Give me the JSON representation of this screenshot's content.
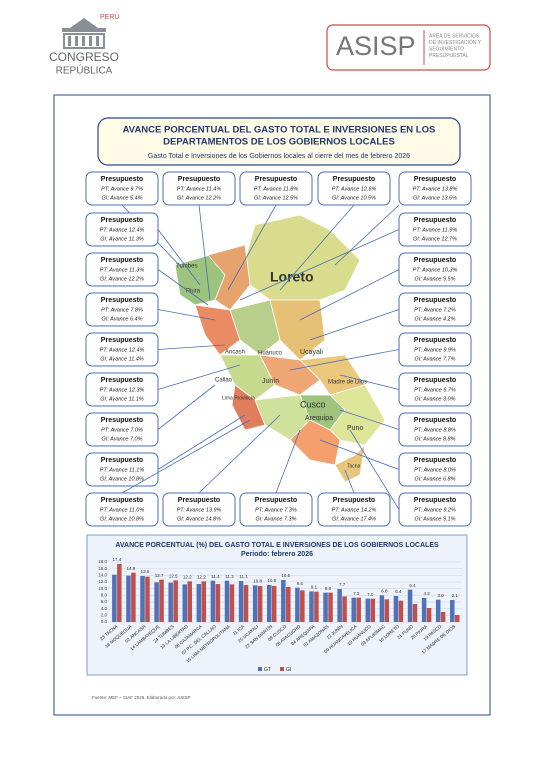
{
  "header": {
    "logo": {
      "top": "PERÚ",
      "name": "CONGRESO",
      "sub": "REPÚBLICA"
    },
    "brand": {
      "name": "ASISP",
      "lines": [
        "ÁREA DE SERVICIOS",
        "DE INVESTIGACIÓN Y",
        "SEGUIMIENTO",
        "PRESUPUESTAL"
      ]
    }
  },
  "infographic": {
    "title": [
      "AVANCE PORCENTUAL DEL GASTO TOTAL E INVERSIONES EN LOS",
      "DEPARTAMENTOS DE LOS GOBIERNOS LOCALES"
    ],
    "subtitle": "Gasto Total e Inversiones de los Gobiernos locales al cierre del mes de febrero 2026",
    "boxes": [
      {
        "title": "Presupuesto",
        "pt": "PT: Avance 9.7%",
        "gi": "GI: Avance 5.4%"
      },
      {
        "title": "Presupuesto",
        "pt": "PT: Avance 11.4%",
        "gi": "GI: Avance 12.2%"
      },
      {
        "title": "Presupuesto",
        "pt": "PT: Avance 11.8%",
        "gi": "GI: Avance 12.5%"
      },
      {
        "title": "Presupuesto",
        "pt": "PT: Avance 12.6%",
        "gi": "GI: Avance 10.5%"
      },
      {
        "title": "Presupuesto",
        "pt": "PT: Avance 13.8%",
        "gi": "GI: Avance 13.6%"
      },
      {
        "title": "Presupuesto",
        "pt": "PT: Avance 12.4%",
        "gi": "GI: Avance 11.3%"
      },
      {
        "title": "Presupuesto",
        "pt": "PT: Avance 11.3%",
        "gi": "GI: Avance 12.2%"
      },
      {
        "title": "Presupuesto",
        "pt": "PT: Avance 7.8%",
        "gi": "GI: Avance 6.4%"
      },
      {
        "title": "Presupuesto",
        "pt": "PT: Avance 12.4%",
        "gi": "GI: Avance 11.4%"
      },
      {
        "title": "Presupuesto",
        "pt": "PT: Avance 12.3%",
        "gi": "GI: Avance 11.1%"
      },
      {
        "title": "Presupuesto",
        "pt": "PT: Avance 7.0%",
        "gi": "GI: Avance 7.0%"
      },
      {
        "title": "Presupuesto",
        "pt": "PT: Avance 11.1%",
        "gi": "GI: Avance 10.8%"
      },
      {
        "title": "Presupuesto",
        "pt": "PT: Avance 11.9%",
        "gi": "GI: Avance 12.7%"
      },
      {
        "title": "Presupuesto",
        "pt": "PT: Avance 10.3%",
        "gi": "GI: Avance 9.5%"
      },
      {
        "title": "Presupuesto",
        "pt": "PT: Avance 7.2%",
        "gi": "GI: Avance 4.2%"
      },
      {
        "title": "Presupuesto",
        "pt": "PT: Avance 9.9%",
        "gi": "GI: Avance 7.7%"
      },
      {
        "title": "Presupuesto",
        "pt": "PT: Avance 6.7%",
        "gi": "GI: Avance 3.0%"
      },
      {
        "title": "Presupuesto",
        "pt": "PT: Avance 8.8%",
        "gi": "GI: Avance 8.8%"
      },
      {
        "title": "Presupuesto",
        "pt": "PT: Avance 8.0%",
        "gi": "GI: Avance 6.8%"
      },
      {
        "title": "Presupuesto",
        "pt": "PT: Avance 9.2%",
        "gi": "GI: Avance 9.1%"
      },
      {
        "title": "Presupuesto",
        "pt": "PT: Avance 11.0%",
        "gi": "GI: Avance 10.8%"
      },
      {
        "title": "Presupuesto",
        "pt": "PT: Avance 13.9%",
        "gi": "GI: Avance 14.8%"
      },
      {
        "title": "Presupuesto",
        "pt": "PT: Avance 7.3%",
        "gi": "GI: Avance 7.3%"
      },
      {
        "title": "Presupuesto",
        "pt": "PT: Avance 14.2%",
        "gi": "GI: Avance 17.4%"
      }
    ],
    "map_labels": [
      "Tumbes",
      "Piura",
      "Loreto",
      "Áncash",
      "Huánuco",
      "Ucayali",
      "Junín",
      "Callao",
      "Lima Provincia",
      "Madre de Dios",
      "Cusco",
      "Puno",
      "Arequipa",
      "Tacna"
    ]
  },
  "chart_data": {
    "type": "bar",
    "title": "AVANCE PORCENTUAL (%) DEL GASTO TOTAL E INVERSIONES DE LOS GOBIERNOS LOCALES",
    "subtitle": "Periodo: febrero 2026",
    "categories": [
      "23 TACNA",
      "18 MOQUEGUA",
      "02 ÁNCASH",
      "14 LAMBAYEQUE",
      "24 TUMBES",
      "13 LA LIBERTAD",
      "06 CAJAMARCA",
      "07 P.C. DEL CALLAO",
      "15 LIMA METROPOLITANA",
      "11 ICA",
      "25 UCAYALI",
      "22 SAN MARTÍN",
      "08 CUSCO",
      "05 AYACUCHO",
      "04 AREQUIPA",
      "01 AMAZONAS",
      "12 JUNÍN",
      "09 HUANCAVELICA",
      "10 HUÁNUCO",
      "03 APURÍMAC",
      "16 LORETO",
      "21 PUNO",
      "20 PIURA",
      "19 PASCO",
      "17 MADRE DE DIOS"
    ],
    "series": [
      {
        "name": "GT",
        "color": "#4f72b8",
        "values": [
          14.2,
          13.9,
          13.8,
          11.9,
          11.8,
          11.3,
          11.4,
          12.4,
          12.4,
          12.3,
          11.0,
          11.1,
          12.6,
          10.3,
          9.2,
          8.8,
          9.9,
          7.3,
          7.0,
          8.0,
          7.8,
          9.7,
          7.2,
          6.7,
          6.6
        ]
      },
      {
        "name": "GI",
        "color": "#c0504d",
        "values": [
          17.4,
          14.8,
          13.6,
          12.7,
          12.5,
          12.2,
          12.2,
          11.4,
          11.3,
          11.1,
          10.8,
          10.8,
          10.5,
          9.5,
          9.1,
          8.8,
          7.7,
          7.3,
          7.0,
          6.8,
          6.4,
          5.4,
          4.2,
          3.0,
          2.1
        ],
        "value_labels": [
          "17.4",
          "14.8",
          "13.6",
          "12.7",
          "12.5",
          "12.2",
          "12.2",
          "11.4",
          "11.3",
          "11.1",
          "10.8",
          "10.8",
          "10.5",
          "9.5",
          "9.1",
          "8.8",
          "7.7",
          "7.3",
          "7.0",
          "6.8",
          "6.4",
          "5.4",
          "4.2",
          "3.0",
          "2.1"
        ]
      }
    ],
    "ylim": [
      0,
      18
    ],
    "yticks": [
      {
        "value": 0,
        "label": "0.0"
      },
      {
        "value": 2,
        "label": "2.0"
      },
      {
        "value": 4,
        "label": "4.0"
      },
      {
        "value": 6,
        "label": "6.0"
      },
      {
        "value": 8,
        "label": "8.0"
      },
      {
        "value": 10,
        "label": "10.0"
      },
      {
        "value": 12,
        "label": "12.0"
      },
      {
        "value": 14,
        "label": "14.0"
      },
      {
        "value": 16,
        "label": "16.0"
      },
      {
        "value": 18,
        "label": "18.0"
      }
    ],
    "grid": true,
    "source": "Fuente: MEF – SIAF 2026. Elaborado por: ASISP"
  }
}
